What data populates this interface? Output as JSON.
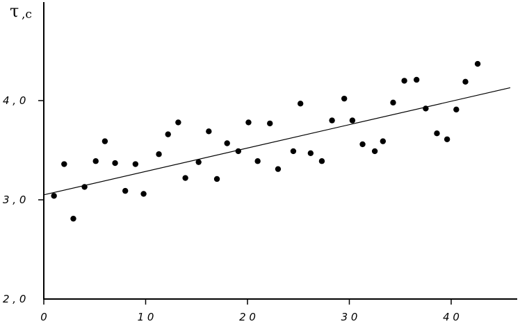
{
  "chart_data": {
    "type": "scatter",
    "ylabel": "τ",
    "ylabel_unit": ",с",
    "xlim": [
      0,
      46
    ],
    "ylim": [
      2.0,
      5.0
    ],
    "x_ticks": [
      {
        "value": 0,
        "label": "0"
      },
      {
        "value": 10,
        "label": "1 0"
      },
      {
        "value": 20,
        "label": "2 0"
      },
      {
        "value": 30,
        "label": "3 0"
      },
      {
        "value": 40,
        "label": "4 0"
      }
    ],
    "y_ticks": [
      {
        "value": 2.0,
        "label": "2 , 0"
      },
      {
        "value": 3.0,
        "label": "3 , 0"
      },
      {
        "value": 4.0,
        "label": "4 , 0"
      }
    ],
    "grid": false,
    "points": [
      {
        "x": 1.0,
        "y": 3.04
      },
      {
        "x": 2.0,
        "y": 3.36
      },
      {
        "x": 2.9,
        "y": 2.81
      },
      {
        "x": 4.0,
        "y": 3.13
      },
      {
        "x": 5.1,
        "y": 3.39
      },
      {
        "x": 6.0,
        "y": 3.59
      },
      {
        "x": 7.0,
        "y": 3.37
      },
      {
        "x": 8.0,
        "y": 3.09
      },
      {
        "x": 9.0,
        "y": 3.36
      },
      {
        "x": 9.8,
        "y": 3.06
      },
      {
        "x": 11.3,
        "y": 3.46
      },
      {
        "x": 12.2,
        "y": 3.66
      },
      {
        "x": 13.2,
        "y": 3.78
      },
      {
        "x": 13.9,
        "y": 3.22
      },
      {
        "x": 15.2,
        "y": 3.38
      },
      {
        "x": 16.2,
        "y": 3.69
      },
      {
        "x": 17.0,
        "y": 3.21
      },
      {
        "x": 18.0,
        "y": 3.57
      },
      {
        "x": 19.1,
        "y": 3.49
      },
      {
        "x": 20.1,
        "y": 3.78
      },
      {
        "x": 21.0,
        "y": 3.39
      },
      {
        "x": 22.2,
        "y": 3.77
      },
      {
        "x": 23.0,
        "y": 3.31
      },
      {
        "x": 24.5,
        "y": 3.49
      },
      {
        "x": 25.2,
        "y": 3.97
      },
      {
        "x": 26.2,
        "y": 3.47
      },
      {
        "x": 27.3,
        "y": 3.39
      },
      {
        "x": 28.3,
        "y": 3.8
      },
      {
        "x": 29.5,
        "y": 4.02
      },
      {
        "x": 30.3,
        "y": 3.8
      },
      {
        "x": 31.3,
        "y": 3.56
      },
      {
        "x": 32.5,
        "y": 3.49
      },
      {
        "x": 33.3,
        "y": 3.59
      },
      {
        "x": 34.3,
        "y": 3.98
      },
      {
        "x": 35.4,
        "y": 4.2
      },
      {
        "x": 36.6,
        "y": 4.21
      },
      {
        "x": 37.5,
        "y": 3.92
      },
      {
        "x": 38.6,
        "y": 3.67
      },
      {
        "x": 39.6,
        "y": 3.61
      },
      {
        "x": 40.5,
        "y": 3.91
      },
      {
        "x": 41.4,
        "y": 4.19
      },
      {
        "x": 42.6,
        "y": 4.37
      }
    ],
    "trendline": {
      "x": [
        0.0,
        45.8
      ],
      "y": [
        3.05,
        4.13
      ]
    }
  }
}
